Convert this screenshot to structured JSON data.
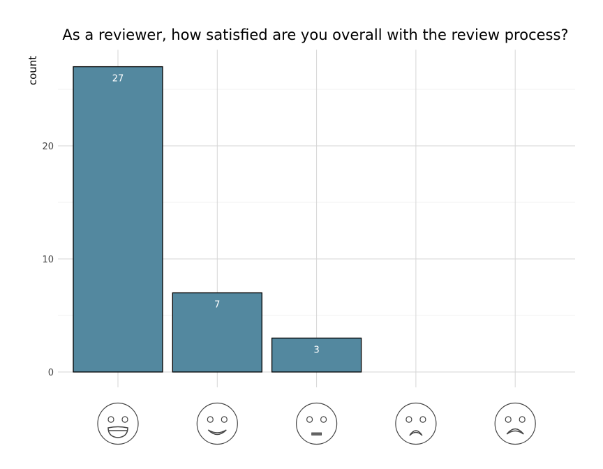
{
  "chart_data": {
    "type": "bar",
    "title": "As a reviewer, how satisfied are you overall with the review process?",
    "xlabel": "",
    "ylabel": "count",
    "categories": [
      "very-satisfied-face-icon",
      "satisfied-face-icon",
      "neutral-face-icon",
      "dissatisfied-face-icon",
      "very-dissatisfied-face-icon"
    ],
    "values": [
      27,
      7,
      3,
      0,
      0
    ],
    "data_labels": [
      "27",
      "7",
      "3",
      "",
      ""
    ],
    "yticks": [
      "0",
      "10",
      "20"
    ],
    "ylim": [
      0,
      28.5
    ],
    "grid": true,
    "legend": "none",
    "bar_color": "#53889f",
    "bar_outline": "#000000"
  }
}
